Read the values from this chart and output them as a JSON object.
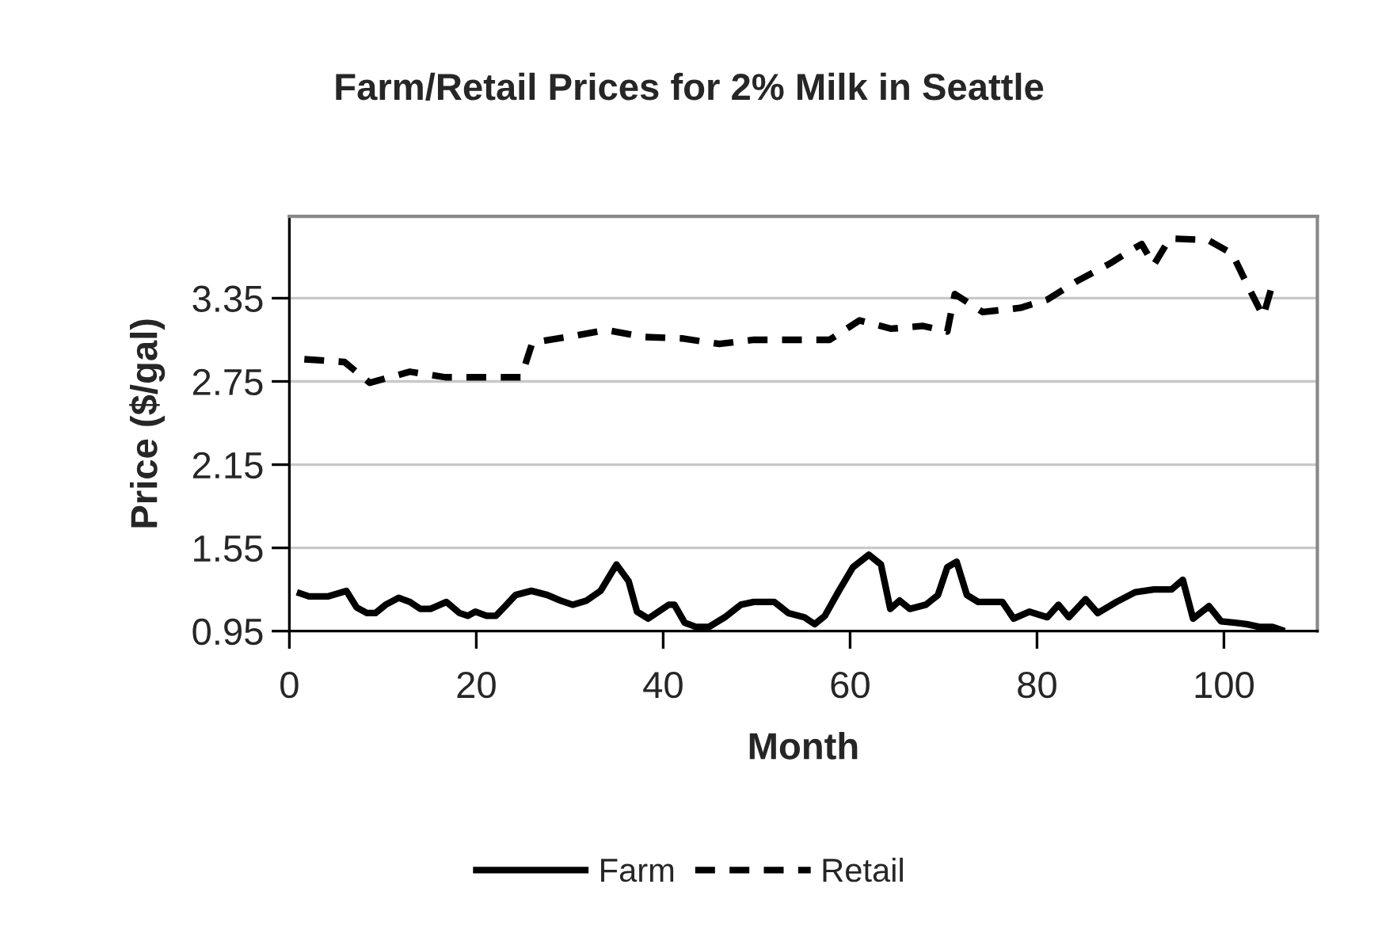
{
  "chart_data": {
    "type": "line",
    "title": "Farm/Retail Prices for 2% Milk in Seattle",
    "xlabel": "Month",
    "ylabel": "Price ($/gal)",
    "xlim": [
      0,
      110
    ],
    "xticks": [
      0,
      20,
      40,
      60,
      80,
      100
    ],
    "ylim": [
      0.95,
      3.94
    ],
    "yticks": [
      0.95,
      1.55,
      2.15,
      2.75,
      3.35
    ],
    "grid": "y",
    "legend": "bottom",
    "marker": "none",
    "series": [
      {
        "name": "Farm",
        "color": "#000000",
        "line_style": "solid",
        "x": [
          0.8,
          2.1,
          4.1,
          6.1,
          7.2,
          8.3,
          9.2,
          10.3,
          11.7,
          12.9,
          14.0,
          15.1,
          16.8,
          18.2,
          19.1,
          19.9,
          21.1,
          22.1,
          23.1,
          24.2,
          25.9,
          27.6,
          29.0,
          30.3,
          31.8,
          33.3,
          35.0,
          36.3,
          37.2,
          38.4,
          40.6,
          41.2,
          42.3,
          43.5,
          44.9,
          46.6,
          48.3,
          49.7,
          51.9,
          53.4,
          55.1,
          56.2,
          57.3,
          58.8,
          60.3,
          62.0,
          63.3,
          64.3,
          65.3,
          66.4,
          68.1,
          69.4,
          70.4,
          71.4,
          72.5,
          73.7,
          76.3,
          77.5,
          79.2,
          81.1,
          82.3,
          83.4,
          85.2,
          86.5,
          88.5,
          90.5,
          92.5,
          94.4,
          95.6,
          96.7,
          98.4,
          99.7,
          101.2,
          102.4,
          103.8,
          105.2,
          106.5
        ],
        "values": [
          1.23,
          1.2,
          1.2,
          1.24,
          1.12,
          1.08,
          1.08,
          1.14,
          1.19,
          1.16,
          1.11,
          1.11,
          1.16,
          1.08,
          1.06,
          1.09,
          1.06,
          1.06,
          1.13,
          1.21,
          1.24,
          1.21,
          1.17,
          1.14,
          1.17,
          1.24,
          1.43,
          1.31,
          1.09,
          1.04,
          1.14,
          1.14,
          1.01,
          0.98,
          0.98,
          1.05,
          1.14,
          1.16,
          1.16,
          1.08,
          1.05,
          1.0,
          1.06,
          1.24,
          1.41,
          1.5,
          1.43,
          1.11,
          1.17,
          1.11,
          1.14,
          1.21,
          1.41,
          1.45,
          1.21,
          1.16,
          1.16,
          1.04,
          1.09,
          1.05,
          1.14,
          1.05,
          1.18,
          1.08,
          1.16,
          1.23,
          1.25,
          1.25,
          1.32,
          1.04,
          1.13,
          1.02,
          1.01,
          1.0,
          0.98,
          0.98,
          0.95
        ]
      },
      {
        "name": "Retail",
        "color": "#000000",
        "line_style": "dashed",
        "x": [
          1.6,
          5.9,
          8.6,
          12.9,
          16.7,
          20.7,
          24.8,
          26.0,
          29.7,
          33.9,
          38.1,
          42.0,
          46.0,
          49.7,
          53.7,
          57.8,
          61.0,
          64.4,
          67.8,
          70.4,
          71.2,
          74.2,
          78.2,
          81.1,
          84.2,
          87.8,
          89.9,
          91.2,
          92.5,
          94.2,
          98.3,
          100.9,
          102.4,
          104.2,
          105.2
        ],
        "values": [
          2.91,
          2.89,
          2.74,
          2.82,
          2.78,
          2.78,
          2.78,
          3.03,
          3.07,
          3.12,
          3.07,
          3.06,
          3.02,
          3.05,
          3.05,
          3.05,
          3.19,
          3.13,
          3.15,
          3.11,
          3.38,
          3.25,
          3.28,
          3.34,
          3.47,
          3.6,
          3.69,
          3.74,
          3.59,
          3.78,
          3.77,
          3.67,
          3.46,
          3.22,
          3.45
        ]
      }
    ]
  }
}
